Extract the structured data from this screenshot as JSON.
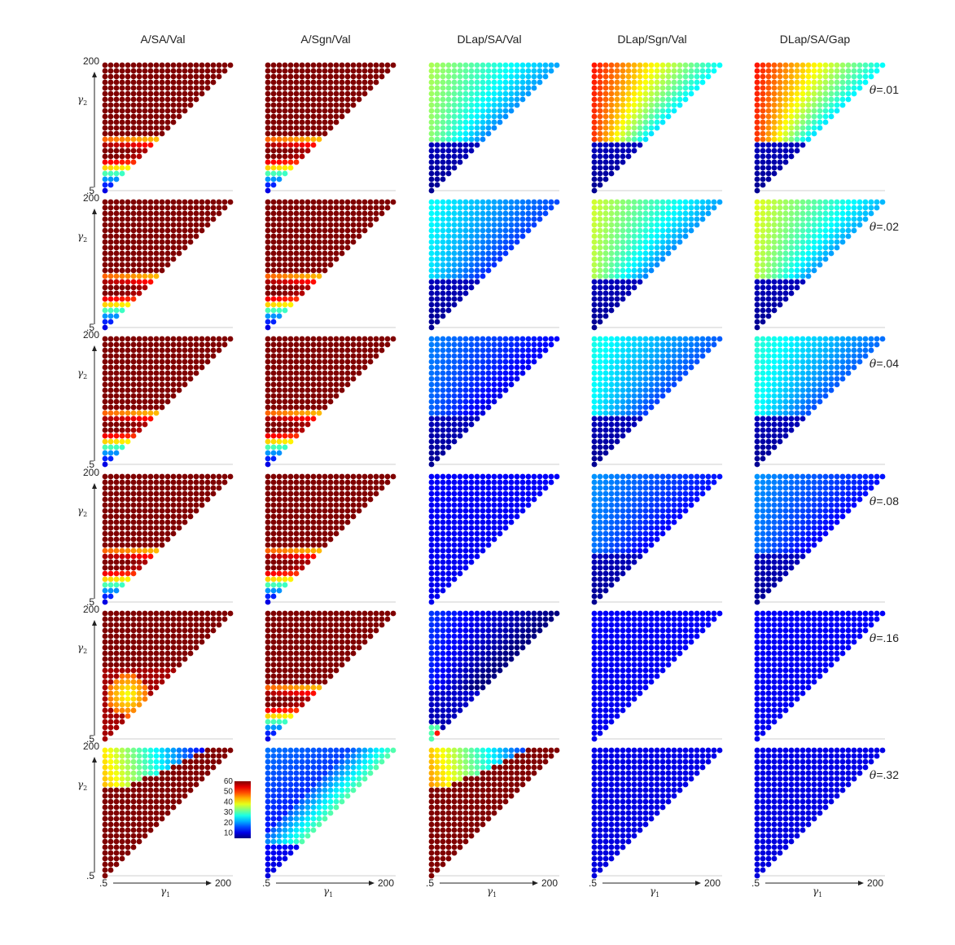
{
  "chart_data": {
    "type": "scatter",
    "description_of_panel_grid": "rows = theta values, columns = methods; each panel is a triangular grid over (gamma1, gamma2) with gamma1 <= gamma2, colored by value",
    "columns": [
      "A/SA/Val",
      "A/Sgn/Val",
      "DLap/SA/Val",
      "DLap/Sgn/Val",
      "DLap/SA/Gap"
    ],
    "rows": [
      "θ=.01",
      "θ=.02",
      "θ=.04",
      "θ=.08",
      "θ=.16",
      "θ=.32"
    ],
    "x_tick_labels": [
      ".5",
      "200"
    ],
    "y_tick_labels": [
      ".5",
      "200"
    ],
    "x_axis_symbol": "γ",
    "x_axis_subscript": "1",
    "y_axis_symbol": "γ",
    "y_axis_subscript": "2",
    "xlim": [
      0.5,
      200
    ],
    "ylim": [
      0.5,
      200
    ],
    "grid_points_per_axis": 23,
    "colormap": "jet",
    "colorbar": {
      "min": 5,
      "max": 60,
      "tick_labels": [
        "60",
        "50",
        "40",
        "30",
        "20",
        "10"
      ],
      "placement": "inside bottom-right of the bottom-left panel"
    },
    "color_fields": [
      [
        {
          "mode": "hump",
          "amp": 55,
          "center": 0.3,
          "width": 0.12,
          "edge": 8,
          "plateau": true
        },
        {
          "mode": "hump",
          "amp": 55,
          "center": 0.3,
          "width": 0.12,
          "edge": 8,
          "plateau": true
        },
        {
          "mode": "wedge",
          "upper": 33,
          "gradient": 10,
          "lower": 10
        },
        {
          "mode": "wedge",
          "upper": 50,
          "gradient": 22,
          "lower": 10
        },
        {
          "mode": "wedge",
          "upper": 50,
          "gradient": 22,
          "lower": 10
        }
      ],
      [
        {
          "mode": "hump",
          "amp": 55,
          "center": 0.3,
          "width": 0.12,
          "edge": 8,
          "plateau": true
        },
        {
          "mode": "hump",
          "amp": 55,
          "center": 0.3,
          "width": 0.12,
          "edge": 8,
          "plateau": true
        },
        {
          "mode": "wedge",
          "upper": 24,
          "gradient": 6,
          "lower": 10
        },
        {
          "mode": "wedge",
          "upper": 35,
          "gradient": 12,
          "lower": 10
        },
        {
          "mode": "wedge",
          "upper": 36,
          "gradient": 12,
          "lower": 10
        }
      ],
      [
        {
          "mode": "hump",
          "amp": 55,
          "center": 0.3,
          "width": 0.12,
          "edge": 8,
          "plateau": true
        },
        {
          "mode": "hump",
          "amp": 55,
          "center": 0.3,
          "width": 0.12,
          "edge": 8,
          "plateau": true
        },
        {
          "mode": "wedge",
          "upper": 17,
          "gradient": 3,
          "lower": 10
        },
        {
          "mode": "wedge",
          "upper": 25,
          "gradient": 6,
          "lower": 10
        },
        {
          "mode": "wedge",
          "upper": 26,
          "gradient": 6,
          "lower": 10
        }
      ],
      [
        {
          "mode": "hump",
          "amp": 55,
          "center": 0.3,
          "width": 0.12,
          "edge": 8,
          "plateau": true
        },
        {
          "mode": "hump",
          "amp": 55,
          "center": 0.3,
          "width": 0.12,
          "edge": 8,
          "plateau": true
        },
        {
          "mode": "flat",
          "value": 11
        },
        {
          "mode": "wedge",
          "upper": 18,
          "gradient": 3,
          "lower": 10
        },
        {
          "mode": "wedge",
          "upper": 18,
          "gradient": 3,
          "lower": 10
        }
      ],
      [
        {
          "mode": "blob",
          "base": 58,
          "center": [
            0.18,
            0.35
          ],
          "radius": 0.17,
          "low": 38
        },
        {
          "mode": "hump",
          "amp": 55,
          "center": 0.3,
          "width": 0.12,
          "edge": 8,
          "plateau": true
        },
        {
          "mode": "wedge",
          "upper": 13,
          "gradient": 6,
          "lower": 11,
          "spot": true
        },
        {
          "mode": "flat",
          "value": 11
        },
        {
          "mode": "flat",
          "value": 11
        }
      ],
      [
        {
          "mode": "top",
          "hot": 40,
          "base": 58,
          "band": 0.7
        },
        {
          "mode": "diag",
          "base": 18,
          "diag": 30
        },
        {
          "mode": "top",
          "hot": 42,
          "base": 58,
          "band": 0.72
        },
        {
          "mode": "flat",
          "value": 10
        },
        {
          "mode": "flat",
          "value": 10
        }
      ]
    ]
  }
}
